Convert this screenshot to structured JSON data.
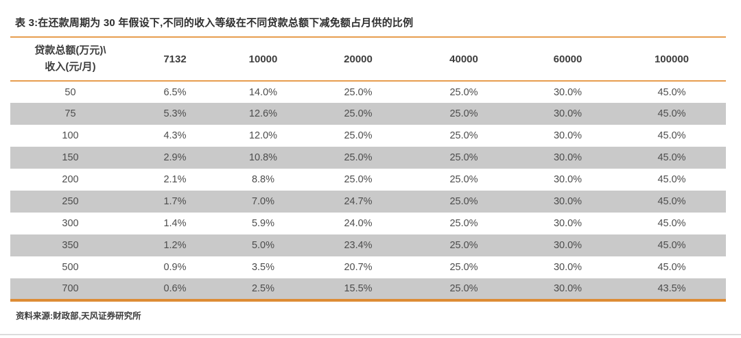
{
  "header": {
    "title": "表 3:在还款周期为 30 年假设下,不同的收入等级在不同贷款总额下减免额占月供的比例"
  },
  "chart_data": {
    "type": "table",
    "corner": {
      "line1": "贷款总额(万元)\\",
      "line2": "收入(元/月)"
    },
    "columns": [
      "7132",
      "10000",
      "20000",
      "40000",
      "60000",
      "100000"
    ],
    "rows": [
      {
        "income": "50",
        "values": [
          "6.5%",
          "14.0%",
          "25.0%",
          "25.0%",
          "30.0%",
          "45.0%"
        ]
      },
      {
        "income": "75",
        "values": [
          "5.3%",
          "12.6%",
          "25.0%",
          "25.0%",
          "30.0%",
          "45.0%"
        ]
      },
      {
        "income": "100",
        "values": [
          "4.3%",
          "12.0%",
          "25.0%",
          "25.0%",
          "30.0%",
          "45.0%"
        ]
      },
      {
        "income": "150",
        "values": [
          "2.9%",
          "10.8%",
          "25.0%",
          "25.0%",
          "30.0%",
          "45.0%"
        ]
      },
      {
        "income": "200",
        "values": [
          "2.1%",
          "8.8%",
          "25.0%",
          "25.0%",
          "30.0%",
          "45.0%"
        ]
      },
      {
        "income": "250",
        "values": [
          "1.7%",
          "7.0%",
          "24.7%",
          "25.0%",
          "30.0%",
          "45.0%"
        ]
      },
      {
        "income": "300",
        "values": [
          "1.4%",
          "5.9%",
          "24.0%",
          "25.0%",
          "30.0%",
          "45.0%"
        ]
      },
      {
        "income": "350",
        "values": [
          "1.2%",
          "5.0%",
          "23.4%",
          "25.0%",
          "30.0%",
          "45.0%"
        ]
      },
      {
        "income": "500",
        "values": [
          "0.9%",
          "3.5%",
          "20.7%",
          "25.0%",
          "30.0%",
          "45.0%"
        ]
      },
      {
        "income": "700",
        "values": [
          "0.6%",
          "2.5%",
          "15.5%",
          "25.0%",
          "30.0%",
          "43.5%"
        ]
      }
    ]
  },
  "footer": {
    "source": "资料来源:财政部,天风证券研究所"
  },
  "colors": {
    "accent_orange": "#e79d4e",
    "accent_orange_dark": "#dd8c35",
    "stripe_gray": "#c9c9c9",
    "title_text": "#2f2f2f",
    "header_text": "#3d3d3d",
    "body_text": "#4c4c4c",
    "page_rule_gray": "#dcdcdc"
  }
}
